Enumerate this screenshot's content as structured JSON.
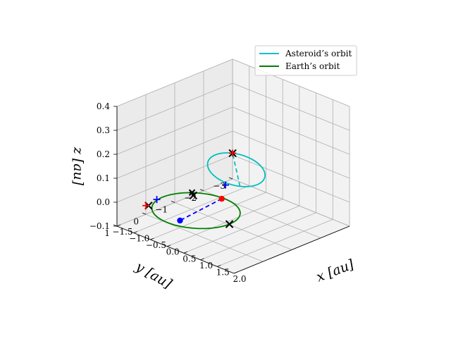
{
  "chart_data": {
    "type": "line",
    "projection": "3d",
    "title": "",
    "xlabel": "x [au]",
    "ylabel": "y [au]",
    "zlabel": "z [au]",
    "xlim": [
      -1.5,
      2.0
    ],
    "ylim": [
      -3,
      1
    ],
    "zlim": [
      -0.1,
      0.4
    ],
    "x_ticks": [
      "−1.5",
      "−1.0",
      "−0.5",
      "0.0",
      "0.5",
      "1.0",
      "1.5",
      "2.0"
    ],
    "y_ticks": [
      "1",
      "0",
      "−1",
      "−2",
      "−3"
    ],
    "z_ticks": [
      "−0.1",
      "0.0",
      "0.1",
      "0.2",
      "0.3",
      "0.4"
    ],
    "grid": true,
    "legend_position": "top-right",
    "series": [
      {
        "name": "Asteroid’s orbit",
        "color": "#17becf",
        "style": "solid"
      },
      {
        "name": "Earth’s orbit",
        "color": "#008000",
        "style": "solid"
      }
    ],
    "colors": {
      "asteroid": "#00bfbf",
      "earth": "#008000",
      "transfer": "#0000ff",
      "marker_black": "#000000",
      "marker_red": "#ff0000",
      "marker_blue": "#0000ff"
    }
  }
}
